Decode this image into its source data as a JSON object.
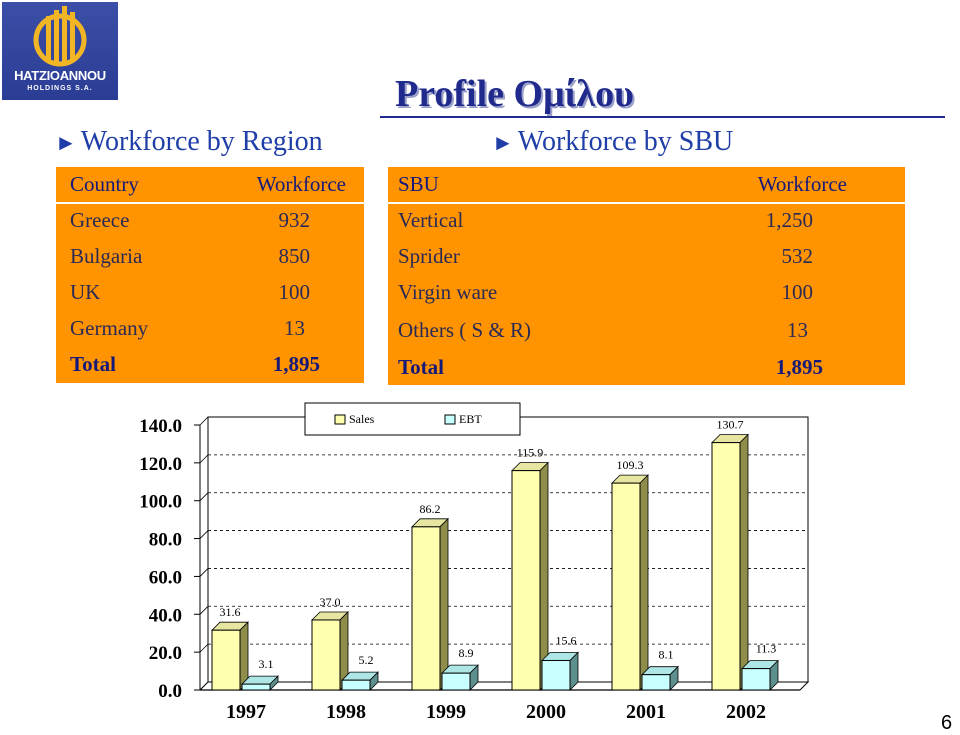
{
  "logo": {
    "brand": "HATZIOANNOU",
    "sub": "HOLDINGS S.A."
  },
  "title": "Profile Ομίλου",
  "section_region": "Workforce by Region",
  "section_sbu": "Workforce by SBU",
  "region_table": {
    "headers": [
      "Country",
      "Workforce"
    ],
    "rows": [
      [
        "Greece",
        "932"
      ],
      [
        "Bulgaria",
        "850"
      ],
      [
        "UK",
        "100"
      ],
      [
        "Germany",
        "13"
      ]
    ],
    "total": [
      "Total",
      "1,895"
    ]
  },
  "sbu_table": {
    "headers": [
      "SBU",
      "Workforce"
    ],
    "rows": [
      [
        "Vertical",
        "1,250"
      ],
      [
        "Sprider",
        "532"
      ],
      [
        "Virgin ware",
        "100"
      ],
      [
        "Others ( S & R)",
        "13"
      ]
    ],
    "total": [
      "Total",
      "1,895"
    ]
  },
  "chart_data": {
    "type": "bar",
    "categories": [
      "1997",
      "1998",
      "1999",
      "2000",
      "2001",
      "2002"
    ],
    "series": [
      {
        "name": "Sales",
        "values": [
          31.6,
          37.0,
          86.2,
          115.9,
          109.3,
          130.7
        ],
        "labels": [
          "31.6",
          "37.0",
          "86.2",
          "115.9",
          "109.3",
          "130.7"
        ],
        "color": "#ffffb0"
      },
      {
        "name": "EBT",
        "values": [
          3.1,
          5.2,
          8.9,
          15.6,
          8.1,
          11.3
        ],
        "labels": [
          "3.1",
          "5.2",
          "8.9",
          "15.6",
          "8.1",
          "11.3"
        ],
        "color": "#c8ffff"
      }
    ],
    "yticks": [
      "0.0",
      "20.0",
      "40.0",
      "60.0",
      "80.0",
      "100.0",
      "120.0",
      "140.0"
    ],
    "ylim": [
      0,
      140
    ],
    "grid": true,
    "legend": "top-center"
  },
  "page_number": "6"
}
